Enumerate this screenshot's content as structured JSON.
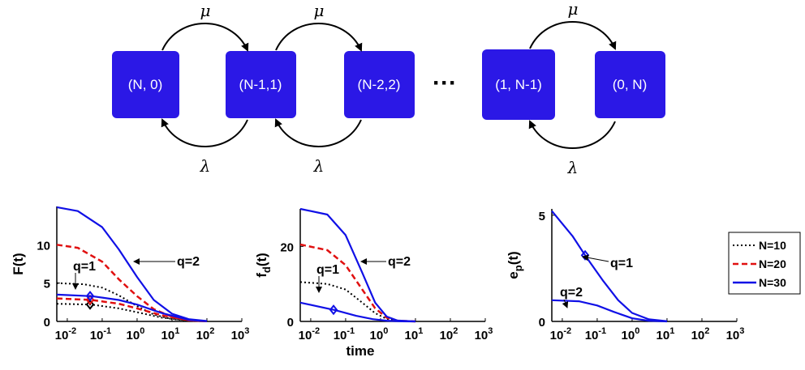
{
  "diagram": {
    "states": [
      {
        "id": "s0",
        "label": "(N, 0)"
      },
      {
        "id": "s1",
        "label": "(N-1,1)"
      },
      {
        "id": "s2",
        "label": "(N-2,2)"
      },
      {
        "id": "s3",
        "label": "(1, N-1)"
      },
      {
        "id": "s4",
        "label": "(0, N)"
      }
    ],
    "ellipsis": "···",
    "forward_rate": "μ",
    "backward_rate": "λ",
    "state_color": "#2b18e6"
  },
  "chart_data": [
    {
      "type": "line",
      "ylabel": "F(t)",
      "xscale": "log",
      "xlim": [
        "10^-2",
        "10^3"
      ],
      "xticks": [
        "10^-2",
        "10^-1",
        "10^0",
        "10^1",
        "10^2",
        "10^3"
      ],
      "ylim": [
        0,
        15
      ],
      "yticks": [
        0,
        5,
        10
      ],
      "annotations": [
        "q=1",
        "q=2"
      ],
      "series": [
        {
          "name": "N=10",
          "q": 2,
          "x": [
            0.005,
            0.03,
            0.1,
            0.3,
            1,
            3,
            10,
            30,
            100
          ],
          "y": [
            5.0,
            4.85,
            4.4,
            3.4,
            2.0,
            0.9,
            0.3,
            0.08,
            0.01
          ]
        },
        {
          "name": "N=10",
          "q": 1,
          "x": [
            0.005,
            0.05,
            0.3,
            1,
            5,
            30,
            100
          ],
          "y": [
            2.3,
            2.2,
            1.7,
            1.2,
            0.5,
            0.1,
            0.02
          ]
        },
        {
          "name": "N=20",
          "q": 2,
          "x": [
            0.005,
            0.02,
            0.1,
            0.3,
            1,
            3,
            10,
            30,
            100
          ],
          "y": [
            10.0,
            9.6,
            7.8,
            5.5,
            3.3,
            1.6,
            0.6,
            0.15,
            0.02
          ]
        },
        {
          "name": "N=20",
          "q": 1,
          "x": [
            0.005,
            0.05,
            0.3,
            1,
            5,
            30,
            100
          ],
          "y": [
            3.0,
            2.8,
            2.3,
            1.7,
            0.8,
            0.15,
            0.02
          ]
        },
        {
          "name": "N=30",
          "q": 2,
          "x": [
            0.005,
            0.02,
            0.1,
            0.3,
            1,
            3,
            10,
            30,
            100
          ],
          "y": [
            14.9,
            14.4,
            12.3,
            9.4,
            5.8,
            2.8,
            1.0,
            0.3,
            0.05
          ]
        },
        {
          "name": "N=30",
          "q": 1,
          "x": [
            0.005,
            0.05,
            0.3,
            1,
            5,
            30,
            100
          ],
          "y": [
            3.5,
            3.3,
            2.8,
            2.2,
            1.1,
            0.2,
            0.02
          ]
        }
      ]
    },
    {
      "type": "line",
      "ylabel": "f_d(t)",
      "xlabel": "time",
      "xscale": "log",
      "xlim": [
        "10^-2",
        "10^3"
      ],
      "xticks": [
        "10^-2",
        "10^-1",
        "10^0",
        "10^1",
        "10^2",
        "10^3"
      ],
      "ylim": [
        0,
        30
      ],
      "yticks": [
        0,
        20
      ],
      "annotations": [
        "q=1",
        "q=2"
      ],
      "series": [
        {
          "name": "N=10",
          "q": 2,
          "x": [
            0.005,
            0.03,
            0.1,
            0.3,
            0.7,
            1.5,
            3,
            10
          ],
          "y": [
            10.5,
            10.0,
            8.5,
            5.0,
            2.2,
            0.7,
            0.15,
            0.0
          ]
        },
        {
          "name": "N=20",
          "q": 2,
          "x": [
            0.005,
            0.03,
            0.1,
            0.3,
            0.7,
            1.5,
            3,
            10
          ],
          "y": [
            20.5,
            19.0,
            15.0,
            8.5,
            3.5,
            1.0,
            0.2,
            0.0
          ]
        },
        {
          "name": "N=30",
          "q": 2,
          "x": [
            0.005,
            0.03,
            0.1,
            0.3,
            0.7,
            1.5,
            3,
            10
          ],
          "y": [
            30.0,
            28.5,
            23.0,
            13.0,
            5.0,
            1.3,
            0.25,
            0.0
          ]
        },
        {
          "name": "N=30",
          "q": 1,
          "x": [
            0.005,
            0.05,
            0.2,
            0.6,
            1.5,
            4,
            10
          ],
          "y": [
            5.0,
            3.0,
            1.5,
            0.6,
            0.2,
            0.03,
            0.0
          ]
        }
      ]
    },
    {
      "type": "line",
      "ylabel": "e_p(t)",
      "xscale": "log",
      "xlim": [
        "10^-2",
        "10^3"
      ],
      "xticks": [
        "10^-2",
        "10^-1",
        "10^0",
        "10^1",
        "10^2",
        "10^3"
      ],
      "ylim": [
        0,
        5.3
      ],
      "yticks": [
        0,
        5
      ],
      "annotations": [
        "q=1",
        "q=2"
      ],
      "series": [
        {
          "name": "N=30",
          "q": 1,
          "x": [
            0.005,
            0.02,
            0.05,
            0.15,
            0.4,
            1,
            3,
            10
          ],
          "y": [
            5.2,
            4.0,
            3.0,
            1.9,
            1.0,
            0.4,
            0.1,
            0.01
          ]
        },
        {
          "name": "N=30",
          "q": 2,
          "x": [
            0.005,
            0.03,
            0.1,
            0.3,
            1,
            3,
            10
          ],
          "y": [
            1.0,
            0.95,
            0.75,
            0.45,
            0.15,
            0.03,
            0.0
          ]
        }
      ]
    }
  ],
  "legend": [
    {
      "label": "N=10",
      "color": "#000000",
      "style": "dotted"
    },
    {
      "label": "N=20",
      "color": "#e01010",
      "style": "dashed"
    },
    {
      "label": "N=30",
      "color": "#1010e6",
      "style": "solid"
    }
  ],
  "colors": {
    "N10": "#000000",
    "N20": "#e01010",
    "N30": "#1010e6"
  }
}
